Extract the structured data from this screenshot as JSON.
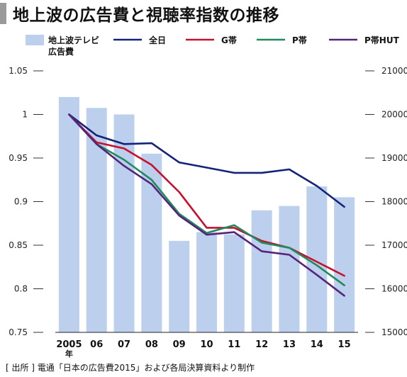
{
  "title": "地上波の広告費と視聴率指数の推移",
  "source": "[ 出所 ] 電通「日本の広告費2015」および各局決算資料より制作",
  "chart_data": {
    "type": "bar+line",
    "categories": [
      "2005",
      "06",
      "07",
      "08",
      "09",
      "10",
      "11",
      "12",
      "13",
      "14",
      "15"
    ],
    "category_sublabels": {
      "2005": "年"
    },
    "left_axis": {
      "min": 0.75,
      "max": 1.05,
      "ticks": [
        "0.75",
        "0.8",
        "0.85",
        "0.9",
        "0.95",
        "1",
        "1.05"
      ]
    },
    "right_axis": {
      "min": 15000,
      "max": 21000,
      "ticks": [
        "15000",
        "16000",
        "17000",
        "18000",
        "19000",
        "20000",
        "21000"
      ]
    },
    "bars": {
      "name": "地上波テレビ広告費",
      "axis": "right",
      "color": "#bcd0ee",
      "values": [
        20400,
        20150,
        20000,
        19100,
        17100,
        17300,
        17250,
        17800,
        17900,
        18350,
        18100
      ]
    },
    "series": [
      {
        "name": "全日",
        "color": "#13237a",
        "values": [
          1.0,
          0.976,
          0.966,
          0.967,
          0.945,
          0.939,
          0.933,
          0.933,
          0.937,
          0.918,
          0.894
        ]
      },
      {
        "name": "G帯",
        "color": "#c8102e",
        "values": [
          1.0,
          0.968,
          0.961,
          0.942,
          0.911,
          0.87,
          0.87,
          0.855,
          0.847,
          0.831,
          0.815
        ]
      },
      {
        "name": "P帯",
        "color": "#1f8a5e",
        "values": [
          1.0,
          0.966,
          0.948,
          0.925,
          0.886,
          0.864,
          0.873,
          0.853,
          0.847,
          0.827,
          0.804
        ]
      },
      {
        "name": "P帯HUT",
        "color": "#55237a",
        "values": [
          1.0,
          0.966,
          0.941,
          0.92,
          0.884,
          0.862,
          0.865,
          0.843,
          0.839,
          0.816,
          0.792
        ]
      }
    ],
    "legend_position": "top",
    "grid": false
  }
}
